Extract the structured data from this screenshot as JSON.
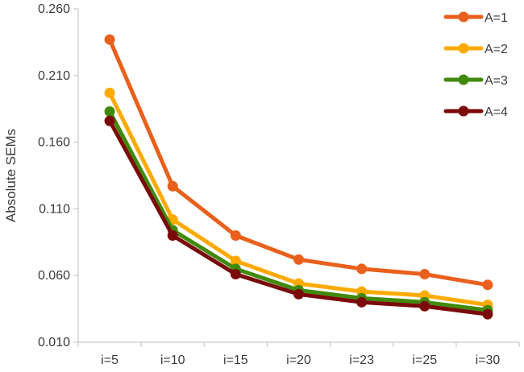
{
  "chart_data": {
    "type": "line",
    "title": "",
    "xlabel": "",
    "ylabel": "Absolute SEMs",
    "categories": [
      "i=5",
      "i=10",
      "i=15",
      "i=20",
      "i=23",
      "i=25",
      "i=30"
    ],
    "yticks": [
      "0.010",
      "0.060",
      "0.110",
      "0.160",
      "0.210",
      "0.260"
    ],
    "ylim": [
      0.01,
      0.26
    ],
    "grid": false,
    "legend_position": "top-right",
    "series": [
      {
        "name": "A=1",
        "color": "#E8601C",
        "values": [
          0.237,
          0.127,
          0.09,
          0.072,
          0.065,
          0.061,
          0.053
        ]
      },
      {
        "name": "A=2",
        "color": "#FDAA00",
        "values": [
          0.197,
          0.102,
          0.071,
          0.054,
          0.048,
          0.045,
          0.038
        ]
      },
      {
        "name": "A=3",
        "color": "#3F8A0C",
        "values": [
          0.183,
          0.094,
          0.065,
          0.049,
          0.043,
          0.04,
          0.034
        ]
      },
      {
        "name": "A=4",
        "color": "#7B0A0A",
        "values": [
          0.176,
          0.09,
          0.061,
          0.046,
          0.04,
          0.037,
          0.031
        ]
      }
    ]
  }
}
